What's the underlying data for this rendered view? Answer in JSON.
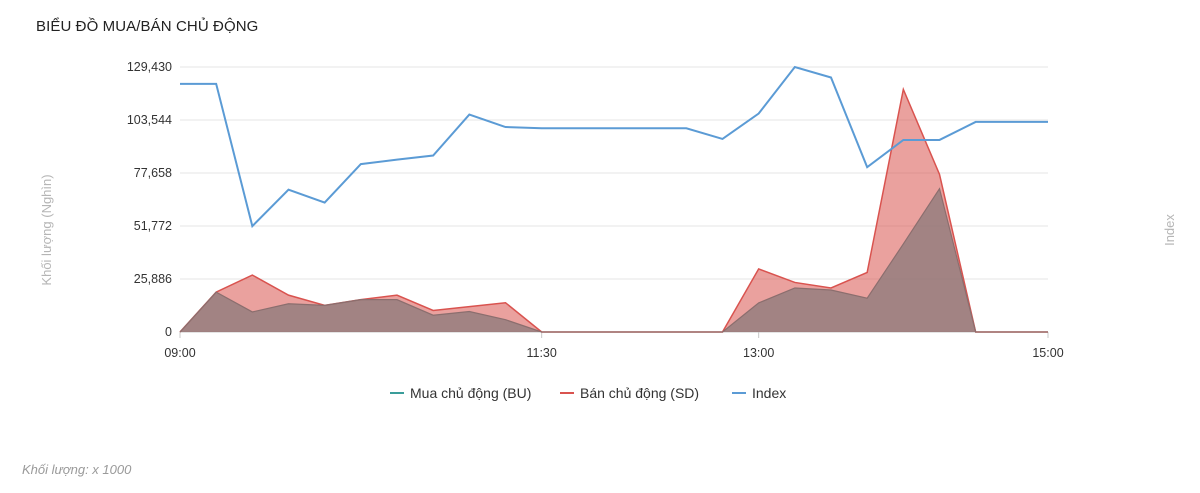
{
  "title": "BIỂU ĐỒ MUA/BÁN CHỦ ĐỘNG",
  "footnote": "Khối lượng: x 1000",
  "chart_data": {
    "type": "area",
    "title": "BIỂU ĐỒ MUA/BÁN CHỦ ĐỘNG",
    "ylabel_left": "Khối lượng (Nghìn)",
    "ylabel_right": "Index",
    "y_ticks": [
      "0",
      "25,886",
      "51,772",
      "77,658",
      "103,544",
      "129,430"
    ],
    "ylim": [
      0,
      129430
    ],
    "x_ticks": [
      "09:00",
      "11:30",
      "13:00",
      "15:00"
    ],
    "x_tick_positions": [
      0,
      10,
      16,
      24
    ],
    "x_points": [
      0,
      1,
      2,
      3,
      4,
      5,
      6,
      7,
      8,
      9,
      10,
      11,
      12,
      13,
      14,
      15,
      16,
      17,
      18,
      19,
      20,
      21,
      22,
      23,
      24
    ],
    "grid": true,
    "legend_position": "bottom",
    "series": [
      {
        "name": "Mua chủ động (BU)",
        "color": "#7e8a8a",
        "values": [
          0,
          19500,
          9800,
          13800,
          13000,
          15800,
          15800,
          8200,
          10000,
          6000,
          0,
          0,
          0,
          0,
          0,
          0,
          14200,
          21500,
          20500,
          16500,
          43000,
          70000,
          0,
          0,
          0
        ]
      },
      {
        "name": "Bán chủ động (SD)",
        "color": "#d9534f",
        "values": [
          0,
          19500,
          27800,
          18000,
          13000,
          15800,
          18000,
          10500,
          12400,
          14300,
          0,
          0,
          0,
          0,
          0,
          0,
          30800,
          24200,
          21500,
          29100,
          118500,
          77000,
          0,
          0,
          0
        ]
      },
      {
        "name": "Index",
        "color": "#5b9bd5",
        "values": [
          121200,
          121200,
          51700,
          69500,
          63200,
          82000,
          84200,
          86200,
          106200,
          100100,
          99500,
          99500,
          99500,
          99500,
          99500,
          94300,
          106700,
          129400,
          124300,
          80500,
          93800,
          93800,
          102600,
          102600,
          102600
        ]
      }
    ]
  }
}
